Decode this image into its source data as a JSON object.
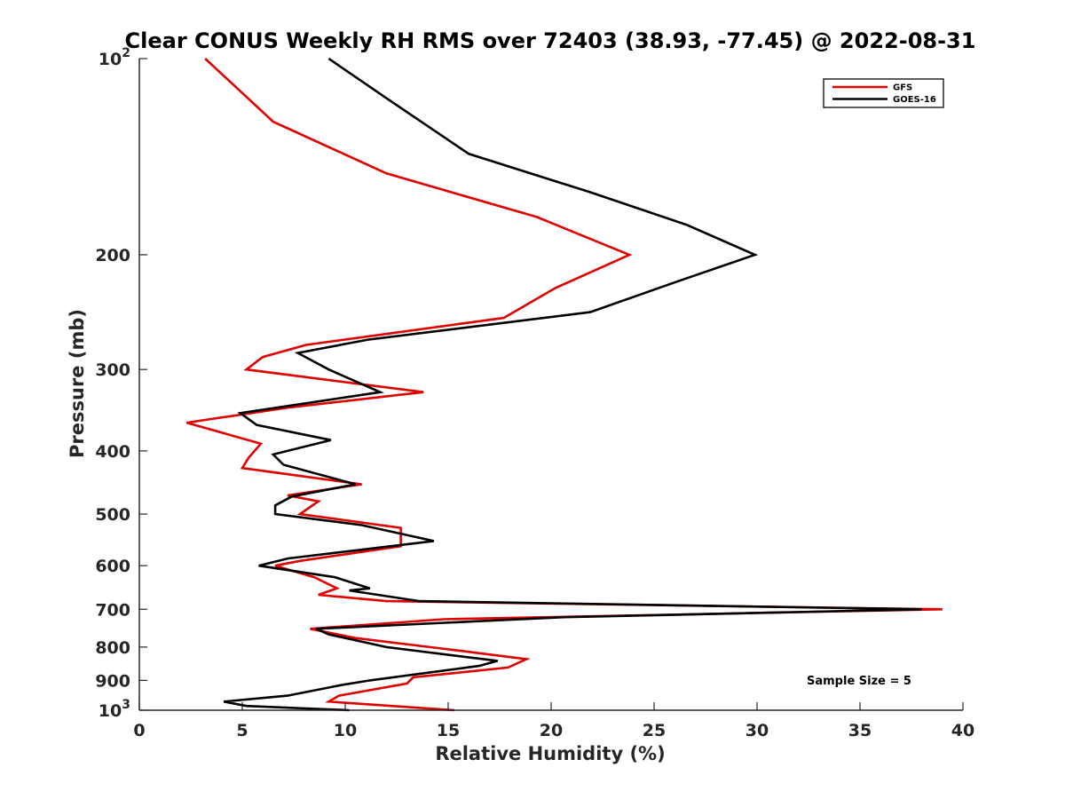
{
  "chart_data": {
    "type": "line",
    "title": "Clear CONUS Weekly RH RMS over 72403 (38.93, -77.45) @ 2022-08-31",
    "xlabel": "Relative Humidity (%)",
    "ylabel": "Pressure (mb)",
    "xlim": [
      0,
      40
    ],
    "ylim": [
      100,
      1000
    ],
    "y_scale": "log",
    "y_reversed": true,
    "grid": false,
    "legend_position": "top-right",
    "x_ticks": [
      0,
      5,
      10,
      15,
      20,
      25,
      30,
      35,
      40
    ],
    "y_ticks": [
      {
        "value": 100,
        "base": "10",
        "exp": "2"
      },
      {
        "value": 200,
        "label": "200"
      },
      {
        "value": 300,
        "label": "300"
      },
      {
        "value": 400,
        "label": "400"
      },
      {
        "value": 500,
        "label": "500"
      },
      {
        "value": 600,
        "label": "600"
      },
      {
        "value": 700,
        "label": "700"
      },
      {
        "value": 800,
        "label": "800"
      },
      {
        "value": 900,
        "label": "900"
      },
      {
        "value": 1000,
        "base": "10",
        "exp": "3"
      }
    ],
    "annotation": "Sample Size = 5",
    "series": [
      {
        "name": "GFS",
        "color": "#e00000",
        "points": [
          [
            3.2,
            100
          ],
          [
            6.5,
            125
          ],
          [
            12.0,
            150
          ],
          [
            19.3,
            175
          ],
          [
            23.8,
            200
          ],
          [
            20.2,
            225
          ],
          [
            17.7,
            250
          ],
          [
            8.1,
            275
          ],
          [
            6.0,
            287
          ],
          [
            5.2,
            300
          ],
          [
            13.8,
            325
          ],
          [
            7.3,
            343
          ],
          [
            2.3,
            362
          ],
          [
            5.9,
            390
          ],
          [
            5.3,
            410
          ],
          [
            5.0,
            425
          ],
          [
            10.8,
            450
          ],
          [
            7.2,
            468
          ],
          [
            8.7,
            478
          ],
          [
            7.8,
            500
          ],
          [
            12.7,
            525
          ],
          [
            12.7,
            560
          ],
          [
            7.8,
            590
          ],
          [
            6.6,
            600
          ],
          [
            8.5,
            625
          ],
          [
            9.6,
            650
          ],
          [
            8.7,
            665
          ],
          [
            12.0,
            680
          ],
          [
            39.0,
            700
          ],
          [
            14.8,
            725
          ],
          [
            8.3,
            750
          ],
          [
            10.5,
            775
          ],
          [
            15.5,
            810
          ],
          [
            18.8,
            835
          ],
          [
            17.9,
            860
          ],
          [
            13.3,
            890
          ],
          [
            13.0,
            910
          ],
          [
            9.7,
            950
          ],
          [
            9.2,
            970
          ],
          [
            15.3,
            1000
          ]
        ]
      },
      {
        "name": "GOES-16",
        "color": "#000000",
        "points": [
          [
            9.2,
            100
          ],
          [
            12.0,
            115
          ],
          [
            16.0,
            140
          ],
          [
            21.8,
            160
          ],
          [
            26.6,
            180
          ],
          [
            29.9,
            200
          ],
          [
            26.1,
            220
          ],
          [
            21.9,
            245
          ],
          [
            11.1,
            270
          ],
          [
            7.7,
            283
          ],
          [
            9.2,
            300
          ],
          [
            11.7,
            325
          ],
          [
            4.9,
            350
          ],
          [
            5.7,
            365
          ],
          [
            9.3,
            385
          ],
          [
            6.5,
            405
          ],
          [
            7.0,
            420
          ],
          [
            10.5,
            450
          ],
          [
            7.4,
            470
          ],
          [
            6.6,
            485
          ],
          [
            6.6,
            500
          ],
          [
            10.8,
            520
          ],
          [
            14.3,
            550
          ],
          [
            7.2,
            585
          ],
          [
            5.8,
            600
          ],
          [
            9.5,
            625
          ],
          [
            11.2,
            650
          ],
          [
            10.2,
            655
          ],
          [
            13.6,
            680
          ],
          [
            38.0,
            700
          ],
          [
            20.5,
            720
          ],
          [
            8.6,
            750
          ],
          [
            9.2,
            765
          ],
          [
            12.0,
            800
          ],
          [
            17.4,
            840
          ],
          [
            16.5,
            855
          ],
          [
            11.2,
            900
          ],
          [
            9.8,
            915
          ],
          [
            7.2,
            950
          ],
          [
            4.1,
            970
          ],
          [
            5.2,
            985
          ],
          [
            10.2,
            1000
          ]
        ]
      }
    ]
  }
}
